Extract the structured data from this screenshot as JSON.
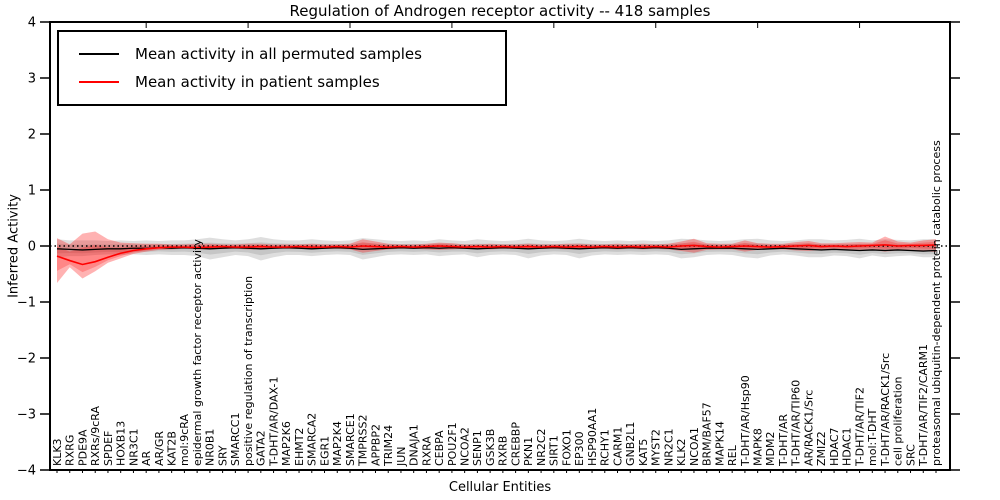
{
  "chart_data": {
    "type": "line",
    "title": "Regulation of Androgen receptor activity -- 418 samples",
    "xlabel": "Cellular Entities",
    "ylabel": "Inferred Activity",
    "ylim": [
      -4,
      4
    ],
    "ytick_labels": [
      "4",
      "3",
      "2",
      "1",
      "0",
      "−1",
      "−2",
      "−3",
      "−4"
    ],
    "ytick_values": [
      4,
      3,
      2,
      1,
      0,
      -1,
      -2,
      -3,
      -4
    ],
    "grid": false,
    "legend_position": "upper left",
    "zero_line": {
      "y": 0,
      "style": "dotted",
      "color": "#000000"
    },
    "categories": [
      "KLK3",
      "RXRG",
      "PDE9A",
      "RXRs/9cRA",
      "SPDEF",
      "HOXB13",
      "NR3C1",
      "AR",
      "AR/GR",
      "KAT2B",
      "mol:9cRA",
      "epidermal growth factor receptor activity",
      "NR0B1",
      "SRY",
      "SMARCC1",
      "positive regulation of transcription",
      "GATA2",
      "T-DHT/AR/DAX-1",
      "MAP2K6",
      "EHMT2",
      "SMARCA2",
      "EGR1",
      "MAP2K4",
      "SMARCE1",
      "TMPRSS2",
      "APPBP2",
      "TRIM24",
      "JUN",
      "DNAJA1",
      "RXRA",
      "CEBPA",
      "POU2F1",
      "NCOA2",
      "SENP1",
      "GSK3B",
      "RXRB",
      "CREBBP",
      "PKN1",
      "NR2C2",
      "SIRT1",
      "FOXO1",
      "EP300",
      "HSP90AA1",
      "RCHY1",
      "CARM1",
      "GNB2L1",
      "KAT5",
      "MYST2",
      "NR2C1",
      "KLK2",
      "NCOA1",
      "BRM/BAF57",
      "MAPK14",
      "REL",
      "T-DHT/AR/Hsp90",
      "MAPK8",
      "MDM2",
      "T-DHT/AR",
      "T-DHT/AR/TIP60",
      "AR/RACK1/Src",
      "ZMIZ2",
      "HDAC7",
      "HDAC1",
      "T-DHT/AR/TIF2",
      "mol:T-DHT",
      "T-DHT/AR/RACK1/Src",
      "cell proliferation",
      "SRC",
      "T-DHT/AR/TIF2/CARM1",
      "proteasomal ubiquitin-dependent protein catabolic process"
    ],
    "series": [
      {
        "name": "Mean activity in all permuted samples",
        "color": "#000000",
        "band_color": "#000000",
        "band_alpha": 0.13,
        "values": [
          -0.05,
          -0.06,
          -0.07,
          -0.06,
          -0.05,
          -0.05,
          -0.04,
          -0.04,
          -0.03,
          -0.04,
          -0.03,
          -0.04,
          -0.05,
          -0.04,
          -0.03,
          -0.04,
          -0.05,
          -0.04,
          -0.03,
          -0.04,
          -0.05,
          -0.04,
          -0.03,
          -0.04,
          -0.06,
          -0.05,
          -0.04,
          -0.03,
          -0.04,
          -0.03,
          -0.04,
          -0.03,
          -0.04,
          -0.05,
          -0.04,
          -0.03,
          -0.04,
          -0.05,
          -0.04,
          -0.03,
          -0.04,
          -0.05,
          -0.04,
          -0.03,
          -0.04,
          -0.03,
          -0.04,
          -0.03,
          -0.04,
          -0.06,
          -0.05,
          -0.04,
          -0.04,
          -0.04,
          -0.05,
          -0.06,
          -0.05,
          -0.04,
          -0.05,
          -0.06,
          -0.07,
          -0.06,
          -0.07,
          -0.08,
          -0.07,
          -0.08,
          -0.07,
          -0.08,
          -0.09,
          -0.08
        ],
        "band_upper": [
          0.12,
          0.1,
          0.1,
          0.1,
          0.09,
          0.1,
          0.09,
          0.1,
          0.09,
          0.1,
          0.1,
          0.12,
          0.15,
          0.12,
          0.1,
          0.12,
          0.16,
          0.12,
          0.1,
          0.1,
          0.12,
          0.1,
          0.09,
          0.1,
          0.14,
          0.12,
          0.1,
          0.09,
          0.1,
          0.09,
          0.12,
          0.1,
          0.09,
          0.12,
          0.1,
          0.09,
          0.1,
          0.13,
          0.1,
          0.09,
          0.1,
          0.13,
          0.1,
          0.09,
          0.1,
          0.09,
          0.1,
          0.09,
          0.1,
          0.13,
          0.12,
          0.1,
          0.09,
          0.1,
          0.12,
          0.13,
          0.1,
          0.09,
          0.1,
          0.12,
          0.12,
          0.1,
          0.11,
          0.13,
          0.1,
          0.12,
          0.11,
          0.1,
          0.12,
          0.12
        ],
        "band_lower": [
          -0.2,
          -0.18,
          -0.18,
          -0.16,
          -0.15,
          -0.16,
          -0.15,
          -0.16,
          -0.15,
          -0.16,
          -0.16,
          -0.18,
          -0.24,
          -0.2,
          -0.16,
          -0.18,
          -0.26,
          -0.2,
          -0.16,
          -0.16,
          -0.18,
          -0.16,
          -0.15,
          -0.16,
          -0.24,
          -0.2,
          -0.16,
          -0.15,
          -0.16,
          -0.15,
          -0.18,
          -0.16,
          -0.15,
          -0.2,
          -0.16,
          -0.15,
          -0.16,
          -0.22,
          -0.17,
          -0.15,
          -0.16,
          -0.22,
          -0.17,
          -0.15,
          -0.16,
          -0.15,
          -0.16,
          -0.15,
          -0.16,
          -0.22,
          -0.2,
          -0.16,
          -0.15,
          -0.16,
          -0.2,
          -0.22,
          -0.17,
          -0.15,
          -0.17,
          -0.2,
          -0.2,
          -0.17,
          -0.18,
          -0.22,
          -0.17,
          -0.2,
          -0.18,
          -0.17,
          -0.2,
          -0.2
        ]
      },
      {
        "name": "Mean activity in patient samples",
        "color": "#ff0000",
        "band_color": "#ff0000",
        "band_alpha": 0.3,
        "values": [
          -0.18,
          -0.26,
          -0.33,
          -0.28,
          -0.2,
          -0.13,
          -0.08,
          -0.05,
          -0.03,
          -0.02,
          -0.02,
          -0.03,
          -0.02,
          -0.01,
          -0.02,
          -0.02,
          -0.01,
          -0.02,
          -0.02,
          -0.01,
          -0.02,
          -0.02,
          -0.01,
          -0.02,
          0.0,
          -0.01,
          -0.02,
          -0.01,
          -0.02,
          -0.01,
          0.0,
          -0.01,
          -0.02,
          -0.01,
          -0.02,
          -0.01,
          -0.02,
          -0.01,
          -0.02,
          -0.01,
          -0.02,
          -0.01,
          -0.02,
          -0.01,
          -0.02,
          -0.01,
          -0.02,
          -0.01,
          -0.02,
          0.0,
          0.01,
          -0.01,
          -0.02,
          -0.01,
          0.0,
          -0.01,
          -0.02,
          -0.01,
          0.0,
          0.01,
          -0.01,
          0.0,
          -0.01,
          0.0,
          0.01,
          0.02,
          0.0,
          0.01,
          0.01,
          0.02
        ],
        "band_upper": [
          0.14,
          0.03,
          0.22,
          0.26,
          0.12,
          0.06,
          0.05,
          0.04,
          0.04,
          0.03,
          0.03,
          0.04,
          0.04,
          0.03,
          0.03,
          0.04,
          0.04,
          0.03,
          0.03,
          0.03,
          0.04,
          0.03,
          0.03,
          0.04,
          0.12,
          0.08,
          0.04,
          0.03,
          0.03,
          0.04,
          0.06,
          0.05,
          0.03,
          0.03,
          0.04,
          0.03,
          0.03,
          0.04,
          0.03,
          0.03,
          0.04,
          0.04,
          0.03,
          0.03,
          0.04,
          0.03,
          0.04,
          0.03,
          0.04,
          0.08,
          0.13,
          0.05,
          0.04,
          0.04,
          0.1,
          0.05,
          0.04,
          0.04,
          0.07,
          0.09,
          0.05,
          0.05,
          0.06,
          0.07,
          0.06,
          0.17,
          0.08,
          0.06,
          0.1,
          0.12
        ],
        "band_lower": [
          -0.66,
          -0.38,
          -0.58,
          -0.45,
          -0.3,
          -0.22,
          -0.14,
          -0.1,
          -0.07,
          -0.06,
          -0.05,
          -0.06,
          -0.06,
          -0.05,
          -0.05,
          -0.06,
          -0.06,
          -0.05,
          -0.05,
          -0.05,
          -0.06,
          -0.05,
          -0.05,
          -0.06,
          -0.12,
          -0.09,
          -0.06,
          -0.05,
          -0.05,
          -0.06,
          -0.07,
          -0.06,
          -0.05,
          -0.05,
          -0.06,
          -0.05,
          -0.05,
          -0.06,
          -0.05,
          -0.05,
          -0.06,
          -0.06,
          -0.05,
          -0.05,
          -0.06,
          -0.05,
          -0.06,
          -0.05,
          -0.06,
          -0.09,
          -0.12,
          -0.07,
          -0.06,
          -0.06,
          -0.1,
          -0.07,
          -0.06,
          -0.06,
          -0.08,
          -0.09,
          -0.07,
          -0.07,
          -0.07,
          -0.08,
          -0.07,
          -0.1,
          -0.08,
          -0.07,
          -0.09,
          -0.11
        ]
      }
    ]
  }
}
